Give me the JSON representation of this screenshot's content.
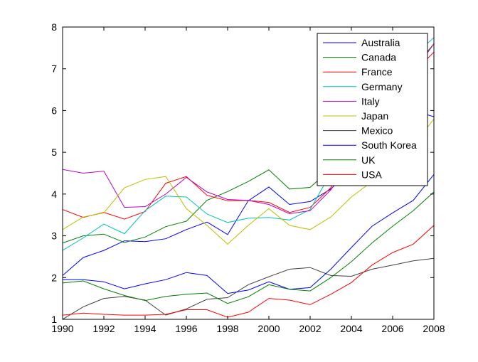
{
  "chart_data": {
    "type": "line",
    "title": "",
    "xlabel": "",
    "ylabel": "",
    "xlim": [
      1990,
      2008
    ],
    "ylim": [
      1,
      8
    ],
    "xticks": [
      1990,
      1992,
      1994,
      1996,
      1998,
      2000,
      2002,
      2004,
      2006,
      2008
    ],
    "yticks": [
      1,
      2,
      3,
      4,
      5,
      6,
      7,
      8
    ],
    "grid": false,
    "legend_position": "top-right",
    "x": [
      1990,
      1991,
      1992,
      1993,
      1994,
      1995,
      1996,
      1997,
      1998,
      1999,
      2000,
      2001,
      2002,
      2003,
      2004,
      2005,
      2006,
      2007,
      2008
    ],
    "series": [
      {
        "name": "Australia",
        "color": "#0000ff",
        "values": [
          2.05,
          2.48,
          2.65,
          2.88,
          2.86,
          2.93,
          3.15,
          3.33,
          3.03,
          3.84,
          4.17,
          3.75,
          3.82,
          4.12,
          4.6,
          5.2,
          5.7,
          6.0,
          5.85
        ]
      },
      {
        "name": "Canada",
        "color": "#008000",
        "values": [
          2.83,
          3.0,
          3.04,
          2.84,
          2.97,
          3.22,
          3.35,
          3.85,
          4.06,
          4.3,
          4.58,
          4.12,
          4.16,
          4.6,
          5.2,
          5.9,
          6.5,
          7.0,
          7.6
        ]
      },
      {
        "name": "France",
        "color": "#ff0000",
        "values": [
          3.63,
          3.44,
          3.56,
          3.4,
          3.58,
          4.26,
          4.42,
          3.97,
          3.84,
          3.85,
          3.8,
          3.56,
          3.68,
          4.15,
          4.9,
          5.6,
          6.3,
          6.9,
          7.4
        ]
      },
      {
        "name": "Germany",
        "color": "#00bfbf",
        "values": [
          2.65,
          2.95,
          3.28,
          3.05,
          3.6,
          3.95,
          3.93,
          3.52,
          3.32,
          3.42,
          3.44,
          3.38,
          3.63,
          4.5,
          5.4,
          6.2,
          6.8,
          7.3,
          7.75
        ]
      },
      {
        "name": "Italy",
        "color": "#bf00bf",
        "values": [
          4.59,
          4.5,
          4.55,
          3.68,
          3.7,
          4.0,
          4.4,
          4.05,
          3.87,
          3.85,
          3.75,
          3.53,
          3.6,
          4.1,
          4.8,
          5.6,
          6.3,
          6.9,
          7.6
        ]
      },
      {
        "name": "Japan",
        "color": "#bfbf00",
        "values": [
          3.15,
          3.45,
          3.55,
          4.15,
          4.35,
          4.42,
          3.65,
          3.25,
          2.8,
          3.25,
          3.65,
          3.25,
          3.15,
          3.45,
          3.93,
          4.3,
          4.75,
          5.15,
          5.8
        ]
      },
      {
        "name": "Mexico",
        "color": "#404040",
        "values": [
          1.0,
          1.3,
          1.5,
          1.55,
          1.46,
          1.1,
          1.25,
          1.48,
          1.52,
          1.83,
          2.02,
          2.2,
          2.24,
          2.05,
          2.03,
          2.2,
          2.3,
          2.4,
          2.46
        ]
      },
      {
        "name": "South Korea",
        "color": "#0000ff",
        "values": [
          1.95,
          1.95,
          1.9,
          1.73,
          1.85,
          1.95,
          2.12,
          2.05,
          1.62,
          1.7,
          1.9,
          1.72,
          1.76,
          2.2,
          2.72,
          3.23,
          3.55,
          3.85,
          4.47
        ]
      },
      {
        "name": "UK",
        "color": "#008000",
        "values": [
          1.87,
          1.92,
          1.73,
          1.57,
          1.45,
          1.55,
          1.6,
          1.63,
          1.38,
          1.54,
          1.83,
          1.72,
          1.68,
          2.0,
          2.38,
          2.83,
          3.23,
          3.6,
          4.05
        ]
      },
      {
        "name": "USA",
        "color": "#ff0000",
        "values": [
          1.1,
          1.15,
          1.12,
          1.1,
          1.1,
          1.12,
          1.23,
          1.23,
          1.05,
          1.17,
          1.5,
          1.46,
          1.35,
          1.6,
          1.88,
          2.3,
          2.6,
          2.8,
          3.25
        ]
      }
    ]
  }
}
